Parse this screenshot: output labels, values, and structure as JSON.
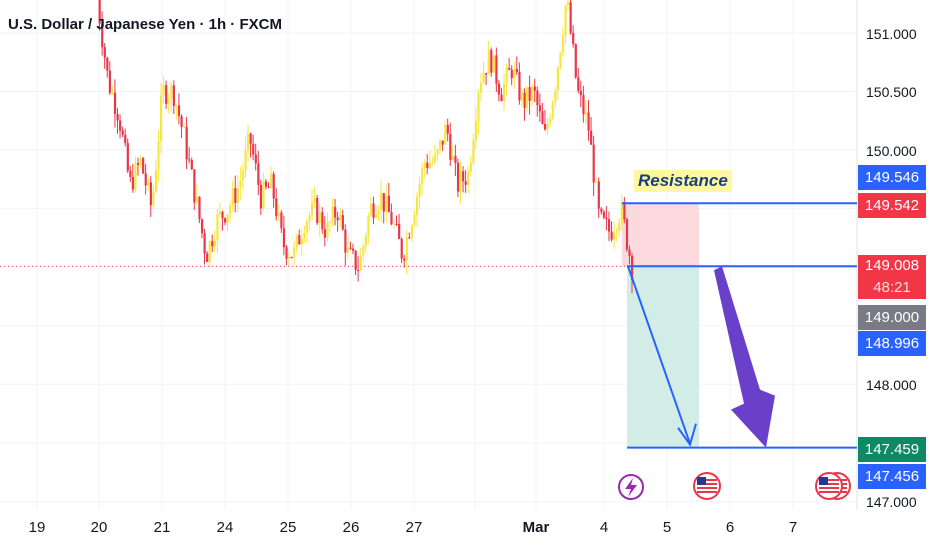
{
  "title": "U.S. Dollar / Japanese Yen · 1h · FXCM",
  "chart_data": {
    "type": "candlestick",
    "symbol": "USDJPY",
    "interval": "1h",
    "source": "FXCM",
    "y_ticks": [
      "151.000",
      "150.500",
      "150.000",
      "148.000",
      "147.000"
    ],
    "y_range": [
      146.9,
      151.3
    ],
    "x_ticks": [
      "19",
      "20",
      "21",
      "24",
      "25",
      "26",
      "27",
      "Mar",
      "4",
      "5",
      "6",
      "7"
    ],
    "close_path": [
      151.3,
      150.6,
      150.3,
      149.7,
      149.9,
      149.5,
      150.5,
      150.5,
      150.1,
      149.6,
      149.1,
      149.4,
      149.5,
      149.7,
      150.1,
      149.6,
      149.7,
      149.2,
      149.1,
      149.4,
      149.5,
      149.3,
      149.5,
      149.1,
      149.0,
      149.5,
      149.6,
      149.4,
      149.1,
      149.5,
      149.9,
      149.9,
      150.2,
      149.7,
      149.8,
      150.6,
      150.8,
      150.5,
      150.7,
      150.4,
      150.5,
      150.1,
      150.6,
      151.3,
      150.5,
      150.2,
      149.4,
      149.3,
      149.5,
      149.0
    ],
    "resistance_label": "Resistance",
    "price_labels": {
      "resistance_top": "149.546",
      "resistance_low": "149.542",
      "current": "149.008",
      "countdown": "48:21",
      "round": "149.000",
      "bid": "148.996",
      "target_top": "147.459",
      "target_low": "147.456"
    },
    "position": {
      "entry": 149.008,
      "stop": 149.546,
      "target": 147.459
    },
    "colors": {
      "up": "#f5e642",
      "down": "#e8364a",
      "line": "#2962ff",
      "arrow": "#6a3fc9",
      "profit": "#d1ede6",
      "loss": "#fbd9dd",
      "current": "#f23645",
      "target": "#0e8a63"
    },
    "event_icons": [
      "lightning-icon",
      "us-flag-icon",
      "us-flag-icon"
    ]
  }
}
